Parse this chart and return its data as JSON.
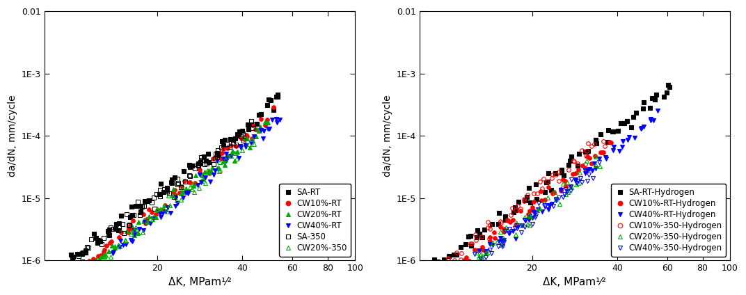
{
  "left_plot": {
    "ylabel": "da/dN, mm/cycle",
    "xlabel": "ΔK, MPam¹⁄²",
    "ylim": [
      1e-06,
      0.01
    ],
    "xlim": [
      8,
      100
    ],
    "xticks": [
      20,
      40,
      60,
      80,
      100
    ],
    "yticks": [
      1e-06,
      1e-05,
      0.0001,
      0.001,
      0.01
    ],
    "ytick_labels": [
      "1E-6",
      "1E-5",
      "1E-4",
      "1E-3",
      "0.01"
    ],
    "series": [
      {
        "label": "SA-RT",
        "color": "#000000",
        "marker": "s",
        "filled": true,
        "C": 2.8e-10,
        "m": 3.55,
        "x_min": 8.0,
        "x_max": 55.0,
        "n_points": 80,
        "scatter_sigma": 0.07
      },
      {
        "label": "CW10%-RT",
        "color": "#ff0000",
        "marker": "o",
        "filled": true,
        "C": 1.4e-10,
        "m": 3.62,
        "x_min": 10.0,
        "x_max": 50.0,
        "n_points": 65,
        "scatter_sigma": 0.06
      },
      {
        "label": "CW20%-RT",
        "color": "#00aa00",
        "marker": "^",
        "filled": true,
        "C": 1.1e-10,
        "m": 3.63,
        "x_min": 10.0,
        "x_max": 50.0,
        "n_points": 65,
        "scatter_sigma": 0.06
      },
      {
        "label": "CW40%-RT",
        "color": "#0000ff",
        "marker": "v",
        "filled": true,
        "C": 9e-11,
        "m": 3.65,
        "x_min": 10.0,
        "x_max": 55.0,
        "n_points": 70,
        "scatter_sigma": 0.06
      },
      {
        "label": "SA-350",
        "color": "#000000",
        "marker": "s",
        "filled": false,
        "C": 3.5e-10,
        "m": 3.42,
        "x_min": 8.5,
        "x_max": 44.0,
        "n_points": 80,
        "scatter_sigma": 0.07
      },
      {
        "label": "CW20%-350",
        "color": "#00aa00",
        "marker": "^",
        "filled": false,
        "C": 1.3e-10,
        "m": 3.55,
        "x_min": 10.0,
        "x_max": 44.0,
        "n_points": 60,
        "scatter_sigma": 0.06
      }
    ]
  },
  "right_plot": {
    "ylabel": "da/dN, mm/cycle",
    "xlabel": "ΔK, MPam¹⁄²",
    "ylim": [
      1e-06,
      0.01
    ],
    "xlim": [
      8,
      100
    ],
    "xticks": [
      20,
      40,
      60,
      80,
      100
    ],
    "yticks": [
      1e-06,
      1e-05,
      0.0001,
      0.001,
      0.01
    ],
    "ytick_labels": [
      "1E-6",
      "1E-5",
      "1E-4",
      "1E-3",
      "0.01"
    ],
    "series": [
      {
        "label": "SA-RT-Hydrogen",
        "color": "#000000",
        "marker": "s",
        "filled": true,
        "C": 2.8e-10,
        "m": 3.55,
        "x_min": 8.0,
        "x_max": 62.0,
        "n_points": 80,
        "scatter_sigma": 0.07
      },
      {
        "label": "CW10%-RT-Hydrogen",
        "color": "#ff0000",
        "marker": "o",
        "filled": true,
        "C": 1.6e-10,
        "m": 3.58,
        "x_min": 8.0,
        "x_max": 38.0,
        "n_points": 65,
        "scatter_sigma": 0.06
      },
      {
        "label": "CW40%-RT-Hydrogen",
        "color": "#0000ff",
        "marker": "v",
        "filled": true,
        "C": 9e-11,
        "m": 3.65,
        "x_min": 8.0,
        "x_max": 55.0,
        "n_points": 75,
        "scatter_sigma": 0.06
      },
      {
        "label": "CW10%-350-Hydrogen",
        "color": "#ff0000",
        "marker": "o",
        "filled": false,
        "C": 2.2e-10,
        "m": 3.62,
        "x_min": 8.0,
        "x_max": 36.0,
        "n_points": 60,
        "scatter_sigma": 0.08
      },
      {
        "label": "CW20%-350-Hydrogen",
        "color": "#00aa00",
        "marker": "^",
        "filled": false,
        "C": 1.1e-10,
        "m": 3.6,
        "x_min": 9.0,
        "x_max": 33.0,
        "n_points": 55,
        "scatter_sigma": 0.07
      },
      {
        "label": "CW40%-350-Hydrogen",
        "color": "#0000ff",
        "marker": "v",
        "filled": false,
        "C": 7.5e-11,
        "m": 3.68,
        "x_min": 8.0,
        "x_max": 34.0,
        "n_points": 65,
        "scatter_sigma": 0.07
      }
    ]
  },
  "background_color": "#ffffff",
  "markersize": 4,
  "markeredgewidth": 0.8,
  "legend_fontsize": 8.5
}
